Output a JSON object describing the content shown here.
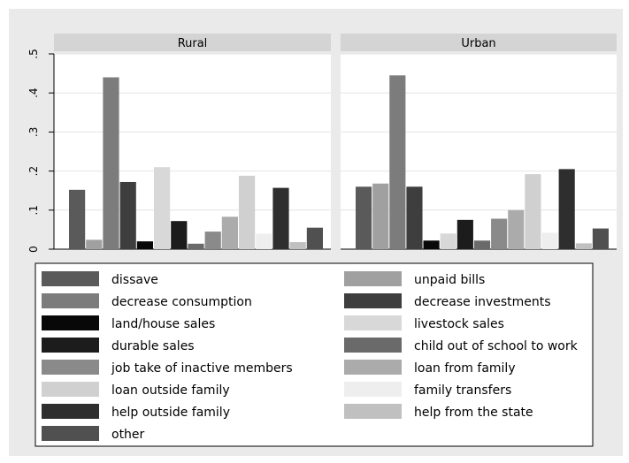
{
  "chart_data": {
    "type": "bar",
    "panels": [
      "Rural",
      "Urban"
    ],
    "ylim": [
      0,
      0.5
    ],
    "yticks": [
      0,
      0.1,
      0.2,
      0.3,
      0.4,
      0.5
    ],
    "ytick_labels": [
      "0",
      ".1",
      ".2",
      ".3",
      ".4",
      ".5"
    ],
    "grid": true,
    "legend_position": "bottom",
    "series": [
      {
        "name": "dissave",
        "color": "#5a5a5a",
        "values": [
          0.152,
          0.16
        ]
      },
      {
        "name": "unpaid bills",
        "color": "#a0a0a0",
        "values": [
          0.024,
          0.168
        ]
      },
      {
        "name": "decrease consumption",
        "color": "#7c7c7c",
        "values": [
          0.44,
          0.445
        ]
      },
      {
        "name": "decrease investments",
        "color": "#3e3e3e",
        "values": [
          0.172,
          0.16
        ]
      },
      {
        "name": "land/house sales",
        "color": "#080808",
        "values": [
          0.02,
          0.022
        ]
      },
      {
        "name": "livestock sales",
        "color": "#d8d8d8",
        "values": [
          0.21,
          0.04
        ]
      },
      {
        "name": "durable sales",
        "color": "#1c1c1c",
        "values": [
          0.072,
          0.075
        ]
      },
      {
        "name": "child out of school to work",
        "color": "#6a6a6a",
        "values": [
          0.014,
          0.022
        ]
      },
      {
        "name": "job take of inactive members",
        "color": "#8a8a8a",
        "values": [
          0.045,
          0.078
        ]
      },
      {
        "name": "loan from family",
        "color": "#ababab",
        "values": [
          0.083,
          0.1
        ]
      },
      {
        "name": "loan outside family",
        "color": "#d0d0d0",
        "values": [
          0.188,
          0.192
        ]
      },
      {
        "name": "family transfers",
        "color": "#eeeeee",
        "values": [
          0.04,
          0.042
        ]
      },
      {
        "name": "help outside family",
        "color": "#2e2e2e",
        "values": [
          0.157,
          0.205
        ]
      },
      {
        "name": "help from the state",
        "color": "#c0c0c0",
        "values": [
          0.018,
          0.015
        ]
      },
      {
        "name": "other",
        "color": "#505050",
        "values": [
          0.055,
          0.053
        ]
      }
    ]
  }
}
